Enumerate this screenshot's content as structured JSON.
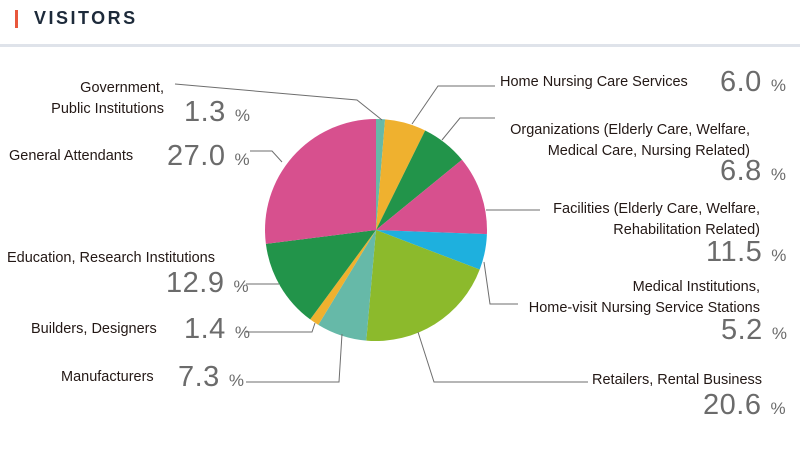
{
  "header": {
    "title": "VISITORS"
  },
  "chart_data": {
    "type": "pie",
    "title": "VISITORS",
    "start_angle": "12 o'clock",
    "direction": "clockwise",
    "unit": "%",
    "slices": [
      {
        "label": "Government, Public Institutions",
        "lines": [
          "Government,",
          "Public Institutions"
        ],
        "value": 1.3,
        "value_text": "1.3",
        "color": "#66b9a8"
      },
      {
        "label": "Home Nursing Care Services",
        "lines": [
          "Home Nursing Care Services"
        ],
        "value": 6.0,
        "value_text": "6.0",
        "color": "#efb12f"
      },
      {
        "label": "Organizations (Elderly Care, Welfare, Medical Care, Nursing Related)",
        "lines": [
          "Organizations (Elderly Care, Welfare,",
          "Medical Care, Nursing Related)"
        ],
        "value": 6.8,
        "value_text": "6.8",
        "color": "#22944a"
      },
      {
        "label": "Facilities (Elderly Care, Welfare, Rehabilitation Related)",
        "lines": [
          "Facilities (Elderly Care, Welfare,",
          "Rehabilitation Related)"
        ],
        "value": 11.5,
        "value_text": "11.5",
        "color": "#d7508e"
      },
      {
        "label": "Medical Institutions, Home-visit Nursing Service Stations",
        "lines": [
          "Medical Institutions,",
          "Home-visit Nursing Service Stations"
        ],
        "value": 5.2,
        "value_text": "5.2",
        "color": "#1eb0de"
      },
      {
        "label": "Retailers, Rental Business",
        "lines": [
          "Retailers, Rental Business"
        ],
        "value": 20.6,
        "value_text": "20.6",
        "color": "#8cba2c"
      },
      {
        "label": "Manufacturers",
        "lines": [
          "Manufacturers"
        ],
        "value": 7.3,
        "value_text": "7.3",
        "color": "#66b9a8"
      },
      {
        "label": "Builders, Designers",
        "lines": [
          "Builders, Designers"
        ],
        "value": 1.4,
        "value_text": "1.4",
        "color": "#efb12f"
      },
      {
        "label": "Education, Research Institutions",
        "lines": [
          "Education, Research Institutions"
        ],
        "value": 12.9,
        "value_text": "12.9",
        "color": "#22944a"
      },
      {
        "label": "General Attendants",
        "lines": [
          "General Attendants"
        ],
        "value": 27.0,
        "value_text": "27.0",
        "color": "#d7508e"
      }
    ]
  }
}
